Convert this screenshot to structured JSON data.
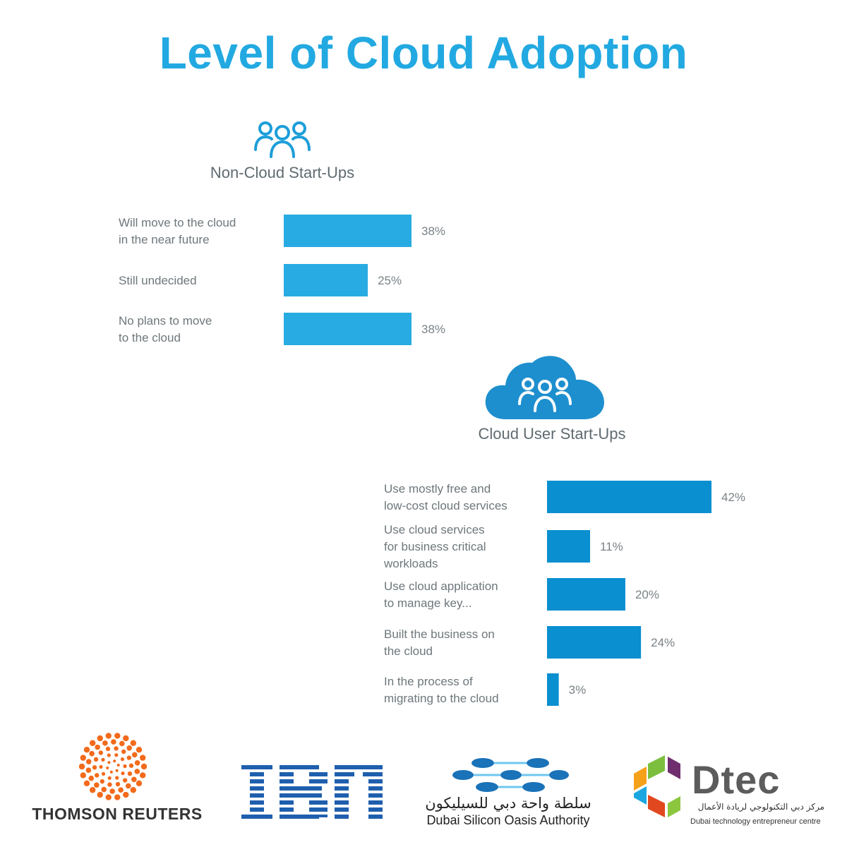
{
  "title": "Level of Cloud Adoption",
  "colors": {
    "title": "#22a9e1",
    "bar_non_cloud": "#28abe2",
    "bar_cloud_user": "#0a8fd0"
  },
  "non_cloud": {
    "title": "Non-Cloud Start-Ups",
    "icon": "people-group-icon"
  },
  "cloud_user": {
    "title": "Cloud User Start-Ups",
    "icon": "cloud-people-icon"
  },
  "chart_data": [
    {
      "type": "bar",
      "orientation": "horizontal",
      "title": "Non-Cloud Start-Ups",
      "categories": [
        [
          "Will move to  the cloud",
          "in the near future"
        ],
        [
          "Still undecided"
        ],
        [
          "No plans to move",
          "to the cloud"
        ]
      ],
      "values": [
        38,
        25,
        38
      ],
      "value_labels": [
        "38%",
        "25%",
        "38%"
      ],
      "unit": "%",
      "grid": false,
      "legend": "none"
    },
    {
      "type": "bar",
      "orientation": "horizontal",
      "title": "Cloud User Start-Ups",
      "categories": [
        [
          "Use mostly free and",
          "low-cost cloud services"
        ],
        [
          "Use cloud services",
          "for business critical",
          "workloads"
        ],
        [
          "Use cloud application",
          "to manage key..."
        ],
        [
          "Built the business on",
          "the cloud"
        ],
        [
          "In the process of",
          "migrating to the cloud"
        ]
      ],
      "values": [
        42,
        11,
        20,
        24,
        3
      ],
      "value_labels": [
        "42%",
        "11%",
        "20%",
        "24%",
        "3%"
      ],
      "unit": "%",
      "grid": false,
      "legend": "none"
    }
  ],
  "logos": {
    "thomson_reuters": "THOMSON REUTERS",
    "ibm": "IBM",
    "dsoa_arabic": "سلطة واحة دبي للسيليكون",
    "dsoa_english": "Dubai Silicon Oasis Authority",
    "dtec_name": "Dtec",
    "dtec_arabic": "مركز دبي التكنولوجي لريادة الأعمال",
    "dtec_english": "Dubai technology entrepreneur centre"
  }
}
